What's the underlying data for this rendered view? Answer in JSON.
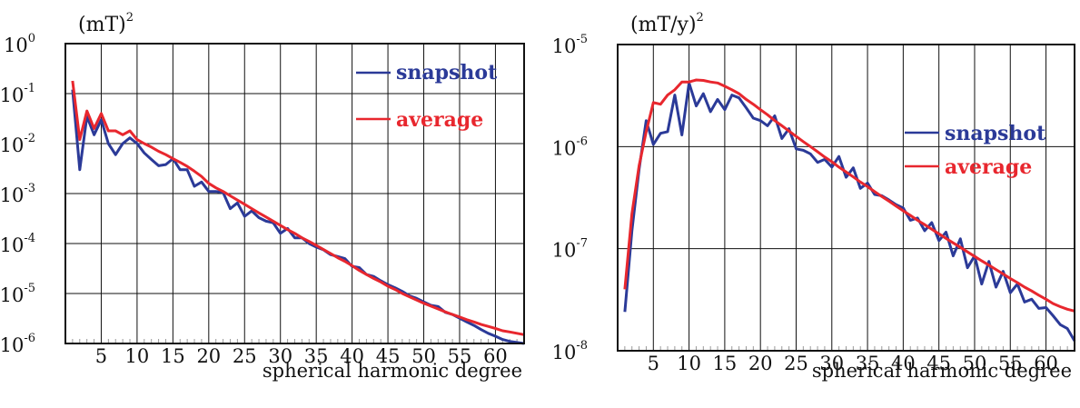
{
  "chart_data": [
    {
      "type": "line",
      "yscale": "log",
      "unit_label": {
        "base": "(mT)",
        "sup": "2"
      },
      "xlabel": "spherical harmonic degree",
      "xlim": [
        0,
        64
      ],
      "ylim": [
        1e-06,
        1
      ],
      "x_ticks": [
        "5",
        "10",
        "15",
        "20",
        "25",
        "30",
        "35",
        "40",
        "45",
        "50",
        "55",
        "60"
      ],
      "y_ticks": [
        {
          "base": "10",
          "exp": "-6"
        },
        {
          "base": "10",
          "exp": "-5"
        },
        {
          "base": "10",
          "exp": "-4"
        },
        {
          "base": "10",
          "exp": "-3"
        },
        {
          "base": "10",
          "exp": "-2"
        },
        {
          "base": "10",
          "exp": "-1"
        },
        {
          "base": "10",
          "exp": "0"
        }
      ],
      "grid": true,
      "legend_position": "top-right",
      "series": [
        {
          "name": "snapshot",
          "color": "#2b3a98",
          "x": [
            1,
            2,
            3,
            4,
            5,
            6,
            7,
            8,
            9,
            10,
            11,
            12,
            13,
            14,
            15,
            16,
            17,
            18,
            19,
            20,
            21,
            22,
            23,
            24,
            25,
            26,
            27,
            28,
            29,
            30,
            31,
            32,
            33,
            34,
            35,
            36,
            37,
            38,
            39,
            40,
            41,
            42,
            43,
            44,
            45,
            46,
            47,
            48,
            49,
            50,
            51,
            52,
            53,
            54,
            55,
            56,
            57,
            58,
            59,
            60,
            61,
            62,
            63,
            64
          ],
          "values": [
            0.12,
            0.003,
            0.035,
            0.015,
            0.03,
            0.01,
            0.006,
            0.01,
            0.013,
            0.01,
            0.0065,
            0.0048,
            0.0036,
            0.0038,
            0.005,
            0.003,
            0.003,
            0.0014,
            0.0017,
            0.0011,
            0.0011,
            0.00105,
            0.0005,
            0.00065,
            0.00035,
            0.00045,
            0.00033,
            0.00028,
            0.00026,
            0.00016,
            0.0002,
            0.00013,
            0.00013,
            0.0001,
            8.5e-05,
            7.5e-05,
            6e-05,
            5.5e-05,
            5e-05,
            3.5e-05,
            3.3e-05,
            2.4e-05,
            2.2e-05,
            1.8e-05,
            1.5e-05,
            1.3e-05,
            1.1e-05,
            9e-06,
            8e-06,
            6.8e-06,
            5.8e-06,
            5.5e-06,
            4.2e-06,
            3.8e-06,
            3.2e-06,
            2.7e-06,
            2.3e-06,
            1.9e-06,
            1.6e-06,
            1.4e-06,
            1.2e-06,
            1.1e-06,
            1.05e-06,
            1e-06
          ]
        },
        {
          "name": "average",
          "color": "#e8272e",
          "x": [
            1,
            2,
            3,
            4,
            5,
            6,
            7,
            8,
            9,
            10,
            11,
            12,
            13,
            14,
            15,
            16,
            17,
            18,
            19,
            20,
            21,
            22,
            23,
            24,
            25,
            26,
            27,
            28,
            29,
            30,
            31,
            32,
            33,
            34,
            35,
            36,
            37,
            38,
            39,
            40,
            41,
            42,
            43,
            44,
            45,
            46,
            47,
            48,
            49,
            50,
            51,
            52,
            53,
            54,
            55,
            56,
            57,
            58,
            59,
            60,
            61,
            62,
            63,
            64
          ],
          "values": [
            0.18,
            0.012,
            0.045,
            0.02,
            0.04,
            0.018,
            0.018,
            0.015,
            0.018,
            0.012,
            0.01,
            0.0085,
            0.007,
            0.006,
            0.005,
            0.0042,
            0.0035,
            0.0028,
            0.0022,
            0.0016,
            0.0013,
            0.0011,
            0.0009,
            0.00074,
            0.00061,
            0.0005,
            0.00041,
            0.00034,
            0.00028,
            0.00023,
            0.00019,
            0.00016,
            0.00013,
            0.00011,
            9.2e-05,
            7.6e-05,
            6.3e-05,
            5.2e-05,
            4.4e-05,
            3.6e-05,
            2.9e-05,
            2.4e-05,
            2e-05,
            1.7e-05,
            1.4e-05,
            1.2e-05,
            1e-05,
            8.6e-06,
            7.4e-06,
            6.4e-06,
            5.6e-06,
            4.9e-06,
            4.3e-06,
            3.8e-06,
            3.4e-06,
            3e-06,
            2.7e-06,
            2.4e-06,
            2.2e-06,
            2e-06,
            1.8e-06,
            1.7e-06,
            1.6e-06,
            1.5e-06
          ]
        }
      ]
    },
    {
      "type": "line",
      "yscale": "log",
      "unit_label": {
        "base": "(mT/y)",
        "sup": "2"
      },
      "xlabel": "spherical harmonic degree",
      "xlim": [
        0,
        64
      ],
      "ylim": [
        1e-08,
        1e-05
      ],
      "x_ticks": [
        "5",
        "10",
        "15",
        "20",
        "25",
        "30",
        "35",
        "40",
        "45",
        "50",
        "55",
        "60"
      ],
      "y_ticks": [
        {
          "base": "10",
          "exp": "-8"
        },
        {
          "base": "10",
          "exp": "-7"
        },
        {
          "base": "10",
          "exp": "-6"
        },
        {
          "base": "10",
          "exp": "-5"
        }
      ],
      "grid": true,
      "legend_position": "right",
      "series": [
        {
          "name": "snapshot",
          "color": "#2b3a98",
          "x": [
            1,
            2,
            3,
            4,
            5,
            6,
            7,
            8,
            9,
            10,
            11,
            12,
            13,
            14,
            15,
            16,
            17,
            18,
            19,
            20,
            21,
            22,
            23,
            24,
            25,
            26,
            27,
            28,
            29,
            30,
            31,
            32,
            33,
            34,
            35,
            36,
            37,
            38,
            39,
            40,
            41,
            42,
            43,
            44,
            45,
            46,
            47,
            48,
            49,
            50,
            51,
            52,
            53,
            54,
            55,
            56,
            57,
            58,
            59,
            60,
            61,
            62,
            63,
            64
          ],
          "values": [
            2.4e-08,
            1.5e-07,
            6e-07,
            1.8e-06,
            1.05e-06,
            1.35e-06,
            1.4e-06,
            3.2e-06,
            1.3e-06,
            4.2e-06,
            2.5e-06,
            3.3e-06,
            2.2e-06,
            2.9e-06,
            2.3e-06,
            3.2e-06,
            3e-06,
            2.4e-06,
            1.9e-06,
            1.8e-06,
            1.6e-06,
            2e-06,
            1.2e-06,
            1.5e-06,
            9.5e-07,
            9.2e-07,
            8.5e-07,
            7e-07,
            7.5e-07,
            6.3e-07,
            8e-07,
            5e-07,
            6.2e-07,
            3.9e-07,
            4.4e-07,
            3.4e-07,
            3.3e-07,
            3e-07,
            2.7e-07,
            2.5e-07,
            1.9e-07,
            2e-07,
            1.5e-07,
            1.8e-07,
            1.2e-07,
            1.45e-07,
            8.5e-08,
            1.25e-07,
            6.5e-08,
            8.5e-08,
            4.5e-08,
            7.5e-08,
            4.2e-08,
            6e-08,
            3.7e-08,
            4.5e-08,
            3e-08,
            3.2e-08,
            2.6e-08,
            2.65e-08,
            2.2e-08,
            1.8e-08,
            1.65e-08,
            1.25e-08
          ]
        },
        {
          "name": "average",
          "color": "#e8272e",
          "x": [
            1,
            2,
            3,
            4,
            5,
            6,
            7,
            8,
            9,
            10,
            11,
            12,
            13,
            14,
            15,
            16,
            17,
            18,
            19,
            20,
            21,
            22,
            23,
            24,
            25,
            26,
            27,
            28,
            29,
            30,
            31,
            32,
            33,
            34,
            35,
            36,
            37,
            38,
            39,
            40,
            41,
            42,
            43,
            44,
            45,
            46,
            47,
            48,
            49,
            50,
            51,
            52,
            53,
            54,
            55,
            56,
            57,
            58,
            59,
            60,
            61,
            62,
            63,
            64
          ],
          "values": [
            4e-08,
            2.2e-07,
            6.5e-07,
            1.4e-06,
            2.7e-06,
            2.6e-06,
            3.2e-06,
            3.6e-06,
            4.3e-06,
            4.3e-06,
            4.5e-06,
            4.45e-06,
            4.3e-06,
            4.2e-06,
            3.9e-06,
            3.6e-06,
            3.3e-06,
            2.9e-06,
            2.6e-06,
            2.3e-06,
            2.05e-06,
            1.8e-06,
            1.6e-06,
            1.42e-06,
            1.26e-06,
            1.12e-06,
            1e-06,
            8.9e-07,
            7.9e-07,
            7.1e-07,
            6.3e-07,
            5.65e-07,
            5.05e-07,
            4.5e-07,
            4.05e-07,
            3.62e-07,
            3.25e-07,
            2.92e-07,
            2.62e-07,
            2.35e-07,
            2.12e-07,
            1.9e-07,
            1.72e-07,
            1.55e-07,
            1.4e-07,
            1.26e-07,
            1.14e-07,
            1.03e-07,
            9.3e-08,
            8.4e-08,
            7.6e-08,
            6.9e-08,
            6.25e-08,
            5.65e-08,
            5.1e-08,
            4.65e-08,
            4.2e-08,
            3.85e-08,
            3.5e-08,
            3.2e-08,
            2.9e-08,
            2.7e-08,
            2.55e-08,
            2.45e-08
          ]
        }
      ]
    }
  ]
}
